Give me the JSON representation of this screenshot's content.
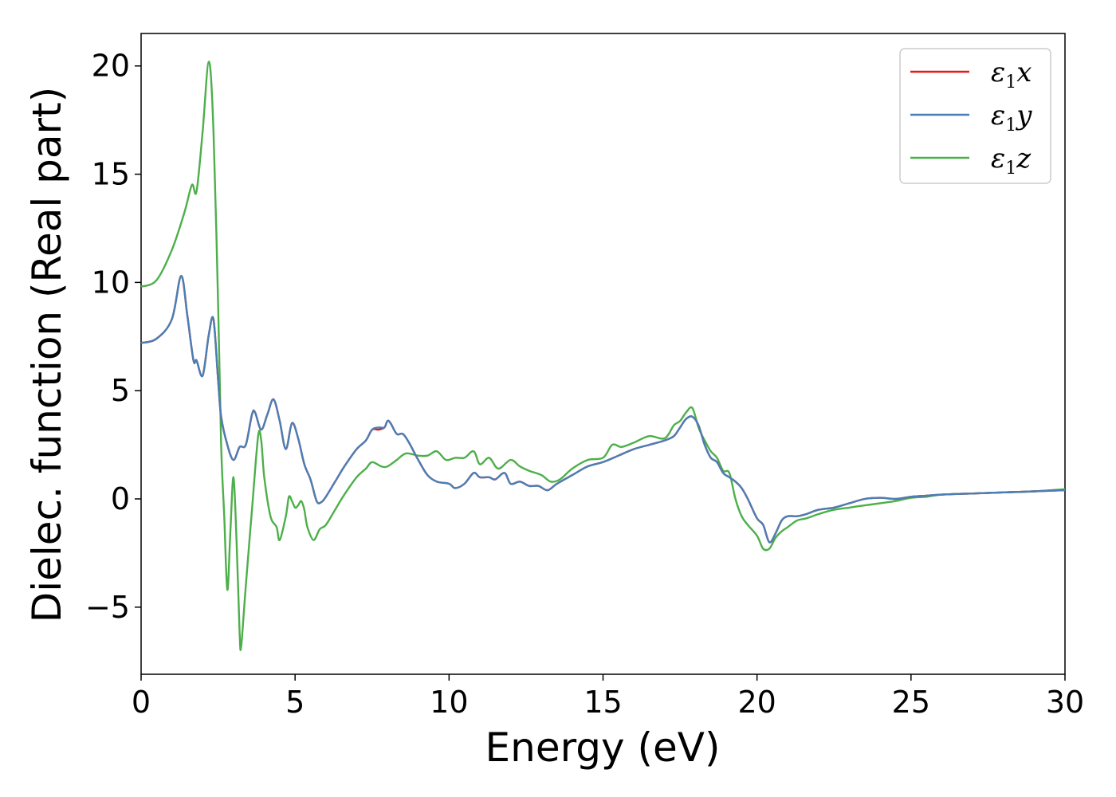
{
  "chart_data": {
    "type": "line",
    "title": "",
    "xlabel": "Energy (eV)",
    "ylabel": "Dielec. function (Real part)",
    "xlim": [
      0,
      30
    ],
    "ylim": [
      -8.1,
      21.5
    ],
    "xticks": [
      0,
      5,
      10,
      15,
      20,
      25,
      30
    ],
    "yticks": [
      -5,
      0,
      5,
      10,
      15,
      20
    ],
    "grid": false,
    "legend_position": "top-right",
    "series": [
      {
        "name": "ε1x",
        "symbol": "ε",
        "sub": "1",
        "axis": "x",
        "color": "#e41a1c",
        "x": [
          0,
          0.5,
          1.0,
          1.3,
          1.5,
          1.7,
          1.8,
          2.0,
          2.2,
          2.35,
          2.5,
          2.6,
          2.8,
          3.0,
          3.2,
          3.4,
          3.6,
          3.7,
          3.9,
          4.1,
          4.3,
          4.5,
          4.7,
          4.9,
          5.1,
          5.3,
          5.5,
          5.7,
          5.85,
          6.0,
          6.3,
          6.6,
          7.0,
          7.3,
          7.5,
          7.7,
          7.9,
          8.0,
          8.1,
          8.3,
          8.5,
          8.7,
          9.0,
          9.3,
          9.6,
          10.0,
          10.2,
          10.5,
          10.8,
          11.0,
          11.3,
          11.5,
          11.8,
          12.0,
          12.3,
          12.6,
          12.9,
          13.2,
          13.5,
          14.0,
          14.5,
          15.0,
          15.5,
          16.0,
          16.5,
          17.0,
          17.3,
          17.5,
          17.7,
          17.9,
          18.1,
          18.3,
          18.5,
          18.7,
          18.9,
          19.1,
          19.3,
          19.5,
          19.7,
          20.0,
          20.2,
          20.4,
          20.6,
          20.8,
          21.0,
          21.3,
          21.6,
          22.0,
          22.5,
          23.0,
          23.5,
          24.0,
          24.5,
          25.0,
          25.5,
          26.0,
          27.0,
          28.0,
          29.0,
          30.0
        ],
        "y": [
          7.2,
          7.4,
          8.3,
          10.3,
          8.5,
          6.4,
          6.4,
          5.7,
          7.6,
          8.3,
          5.5,
          3.8,
          2.5,
          1.8,
          2.4,
          2.5,
          3.9,
          4.0,
          3.2,
          3.9,
          4.6,
          3.6,
          2.3,
          3.5,
          2.8,
          1.6,
          0.9,
          -0.1,
          -0.15,
          0.1,
          0.8,
          1.5,
          2.3,
          2.7,
          3.2,
          3.2,
          3.3,
          3.6,
          3.5,
          3.0,
          3.0,
          2.6,
          1.8,
          1.1,
          0.8,
          0.7,
          0.5,
          0.7,
          1.2,
          1.0,
          1.0,
          0.9,
          1.2,
          0.7,
          0.8,
          0.6,
          0.6,
          0.4,
          0.7,
          1.1,
          1.5,
          1.7,
          2.0,
          2.3,
          2.5,
          2.7,
          2.9,
          3.3,
          3.7,
          3.8,
          3.4,
          2.5,
          1.9,
          1.7,
          1.2,
          1.0,
          0.8,
          0.5,
          0.0,
          -0.9,
          -1.2,
          -2.0,
          -1.6,
          -1.0,
          -0.8,
          -0.8,
          -0.7,
          -0.5,
          -0.4,
          -0.2,
          0.0,
          0.05,
          0.0,
          0.1,
          0.15,
          0.2,
          0.25,
          0.3,
          0.35,
          0.4
        ]
      },
      {
        "name": "ε1y",
        "symbol": "ε",
        "sub": "1",
        "axis": "y",
        "color": "#4a7fb5",
        "x": [
          0,
          0.5,
          1.0,
          1.3,
          1.5,
          1.7,
          1.8,
          2.0,
          2.2,
          2.35,
          2.5,
          2.6,
          2.8,
          3.0,
          3.2,
          3.4,
          3.6,
          3.7,
          3.9,
          4.1,
          4.3,
          4.5,
          4.7,
          4.9,
          5.1,
          5.3,
          5.5,
          5.7,
          5.85,
          6.0,
          6.3,
          6.6,
          7.0,
          7.3,
          7.5,
          7.7,
          7.9,
          8.0,
          8.1,
          8.3,
          8.5,
          8.7,
          9.0,
          9.3,
          9.6,
          10.0,
          10.2,
          10.5,
          10.8,
          11.0,
          11.3,
          11.5,
          11.8,
          12.0,
          12.3,
          12.6,
          12.9,
          13.2,
          13.5,
          14.0,
          14.5,
          15.0,
          15.5,
          16.0,
          16.5,
          17.0,
          17.3,
          17.5,
          17.7,
          17.9,
          18.1,
          18.3,
          18.5,
          18.7,
          18.9,
          19.1,
          19.3,
          19.5,
          19.7,
          20.0,
          20.2,
          20.4,
          20.6,
          20.8,
          21.0,
          21.3,
          21.6,
          22.0,
          22.5,
          23.0,
          23.5,
          24.0,
          24.5,
          25.0,
          25.5,
          26.0,
          27.0,
          28.0,
          29.0,
          30.0
        ],
        "y": [
          7.2,
          7.4,
          8.3,
          10.3,
          8.5,
          6.4,
          6.4,
          5.7,
          7.6,
          8.3,
          5.5,
          3.8,
          2.5,
          1.8,
          2.4,
          2.5,
          3.9,
          4.0,
          3.2,
          3.9,
          4.6,
          3.6,
          2.3,
          3.5,
          2.8,
          1.6,
          0.9,
          -0.1,
          -0.15,
          0.1,
          0.8,
          1.5,
          2.3,
          2.7,
          3.2,
          3.3,
          3.3,
          3.6,
          3.5,
          3.0,
          3.0,
          2.6,
          1.8,
          1.1,
          0.8,
          0.7,
          0.5,
          0.7,
          1.2,
          1.0,
          1.0,
          0.9,
          1.2,
          0.7,
          0.8,
          0.6,
          0.6,
          0.4,
          0.7,
          1.1,
          1.5,
          1.7,
          2.0,
          2.3,
          2.5,
          2.7,
          2.9,
          3.3,
          3.7,
          3.8,
          3.4,
          2.5,
          1.9,
          1.7,
          1.2,
          1.0,
          0.8,
          0.5,
          0.0,
          -0.9,
          -1.2,
          -2.0,
          -1.6,
          -1.0,
          -0.8,
          -0.8,
          -0.7,
          -0.5,
          -0.4,
          -0.2,
          0.0,
          0.05,
          0.0,
          0.1,
          0.15,
          0.2,
          0.25,
          0.3,
          0.35,
          0.4
        ]
      },
      {
        "name": "ε1z",
        "symbol": "ε",
        "sub": "1",
        "axis": "z",
        "color": "#4daf4a",
        "x": [
          0,
          0.5,
          1.0,
          1.4,
          1.65,
          1.8,
          2.0,
          2.2,
          2.35,
          2.5,
          2.6,
          2.7,
          2.8,
          2.9,
          3.0,
          3.1,
          3.2,
          3.25,
          3.4,
          3.6,
          3.8,
          3.9,
          4.0,
          4.2,
          4.4,
          4.5,
          4.7,
          4.8,
          4.9,
          5.0,
          5.1,
          5.2,
          5.3,
          5.4,
          5.6,
          5.8,
          6.0,
          6.3,
          6.6,
          7.0,
          7.3,
          7.5,
          7.8,
          8.0,
          8.3,
          8.6,
          9.0,
          9.3,
          9.6,
          9.9,
          10.2,
          10.5,
          10.8,
          11.0,
          11.3,
          11.6,
          12.0,
          12.3,
          12.6,
          13.0,
          13.3,
          13.6,
          14.0,
          14.5,
          15.0,
          15.3,
          15.6,
          16.0,
          16.5,
          17.0,
          17.3,
          17.5,
          17.7,
          17.9,
          18.1,
          18.3,
          18.5,
          18.7,
          18.9,
          19.1,
          19.3,
          19.5,
          19.7,
          20.0,
          20.2,
          20.4,
          20.6,
          20.8,
          21.0,
          21.3,
          21.6,
          22.0,
          22.5,
          23.0,
          23.5,
          24.0,
          24.5,
          25.0,
          25.5,
          26.0,
          27.0,
          28.0,
          29.0,
          30.0
        ],
        "y": [
          9.8,
          10.1,
          11.5,
          13.2,
          14.5,
          14.2,
          17.0,
          20.2,
          17.0,
          9.0,
          2.5,
          -0.8,
          -4.2,
          -1.5,
          1.0,
          -2.0,
          -6.2,
          -6.8,
          -4.0,
          -0.5,
          2.9,
          2.7,
          1.0,
          -0.8,
          -1.3,
          -1.9,
          -0.8,
          0.1,
          -0.1,
          -0.4,
          -0.3,
          -0.1,
          -0.5,
          -1.3,
          -1.9,
          -1.4,
          -1.2,
          -0.5,
          0.2,
          1.0,
          1.4,
          1.7,
          1.5,
          1.5,
          1.8,
          2.1,
          2.0,
          2.0,
          2.2,
          1.8,
          1.9,
          1.9,
          2.2,
          1.6,
          1.9,
          1.4,
          1.8,
          1.5,
          1.3,
          1.1,
          0.8,
          0.9,
          1.4,
          1.8,
          1.9,
          2.5,
          2.4,
          2.6,
          2.9,
          2.8,
          3.4,
          3.6,
          4.0,
          4.2,
          3.3,
          2.7,
          2.2,
          1.9,
          1.3,
          1.2,
          0.0,
          -0.8,
          -1.2,
          -1.7,
          -2.3,
          -2.3,
          -1.8,
          -1.5,
          -1.3,
          -1.0,
          -0.9,
          -0.7,
          -0.5,
          -0.4,
          -0.3,
          -0.2,
          -0.1,
          0.05,
          0.1,
          0.2,
          0.25,
          0.3,
          0.35,
          0.45
        ]
      }
    ]
  }
}
